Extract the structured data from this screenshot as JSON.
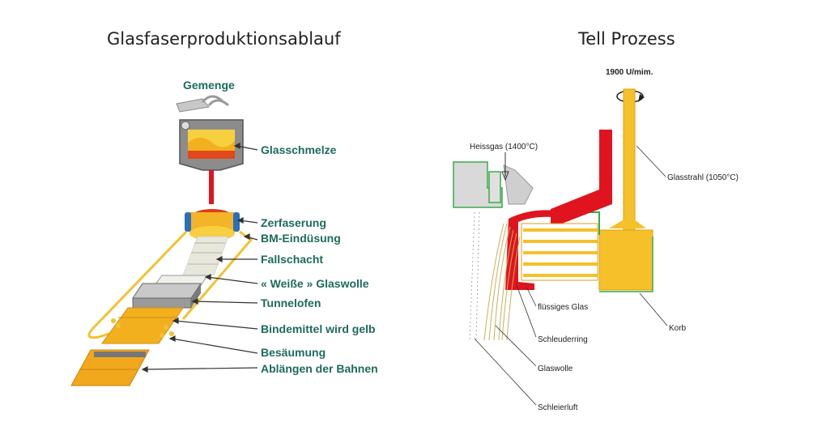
{
  "left": {
    "title": "Glasfaserproduktionsablauf",
    "labels": {
      "gemenge": "Gemenge",
      "glasschmelze": "Glasschmelze",
      "zerfaserung": "Zerfaserung",
      "bm_eindusung": "BM-Eindüsung",
      "fallschacht": "Fallschacht",
      "weisse_glaswolle": "« Weiße » Glaswolle",
      "tunnelofen": "Tunnelofen",
      "bindemittel": "Bindemittel wird gelb",
      "besaumung": "Besäumung",
      "ablangen": "Ablängen der Bahnen"
    }
  },
  "right": {
    "title": "Tell Prozess",
    "labels": {
      "rpm": "1900 U/mim.",
      "heissgas": "Heissgas (1400°C)",
      "glasstrahl": "Glasstrahl (1050°C)",
      "flussiges_glas": "flüssiges Glas",
      "schleuderring": "Schleuderring",
      "korb": "Korb",
      "glaswolle": "Glaswolle",
      "schleierluft": "Schleierluft"
    }
  },
  "colors": {
    "label_green": "#1e6b5c",
    "glass_red": "#e0141e",
    "wool_yellow": "#f5c02a",
    "process_green": "#3aaa4a"
  }
}
